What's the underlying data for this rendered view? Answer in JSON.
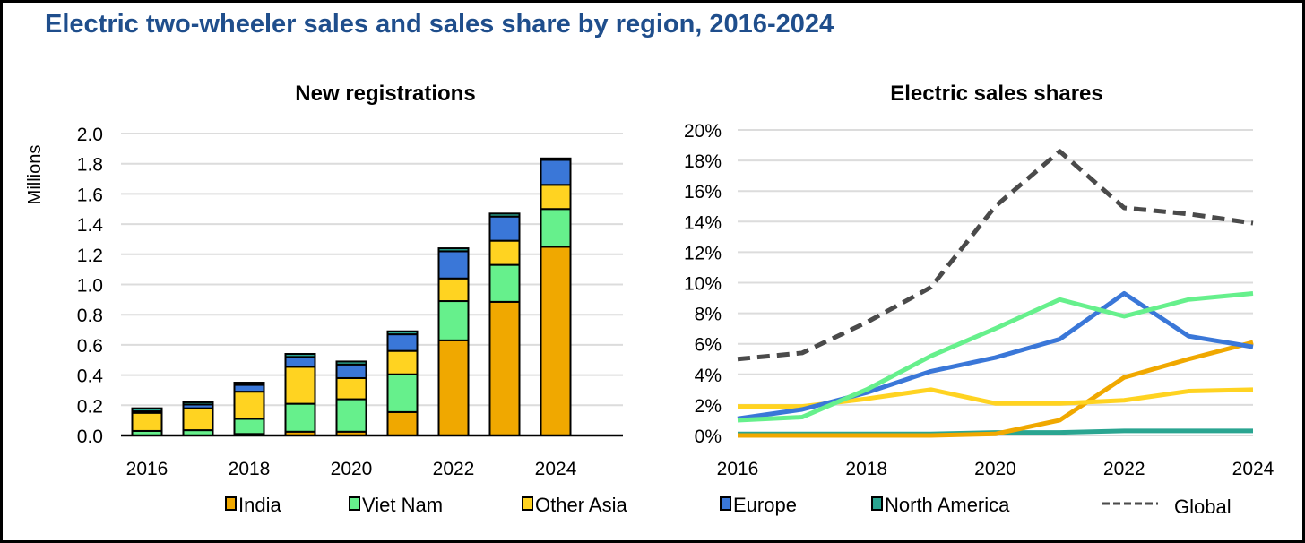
{
  "title": "Electric two-wheeler sales and sales share by region, 2016-2024",
  "legend": [
    {
      "name": "India",
      "color": "#f0a800"
    },
    {
      "name": "Viet Nam",
      "color": "#66f08c"
    },
    {
      "name": "Other Asia",
      "color": "#ffd321"
    },
    {
      "name": "Europe",
      "color": "#3a77d8"
    },
    {
      "name": "North America",
      "color": "#2aa591"
    },
    {
      "name": "Global",
      "color": "#4a4a4a",
      "style": "dashed"
    }
  ],
  "chart_data": [
    {
      "type": "bar",
      "stacked": true,
      "title": "New registrations",
      "xlabel": "",
      "ylabel": "Millions",
      "ylim": [
        0,
        2.0
      ],
      "yticks": [
        "0.0",
        "0.2",
        "0.4",
        "0.6",
        "0.8",
        "1.0",
        "1.2",
        "1.4",
        "1.6",
        "1.8",
        "2.0"
      ],
      "xtick_labels": [
        "2016",
        "2018",
        "2020",
        "2022",
        "2024"
      ],
      "categories": [
        "2016",
        "2017",
        "2018",
        "2019",
        "2020",
        "2021",
        "2022",
        "2023",
        "2024"
      ],
      "grid": true,
      "series": [
        {
          "name": "India",
          "values": [
            0.0,
            0.0,
            0.01,
            0.025,
            0.025,
            0.155,
            0.63,
            0.885,
            1.25
          ]
        },
        {
          "name": "Viet Nam",
          "values": [
            0.03,
            0.035,
            0.1,
            0.185,
            0.215,
            0.25,
            0.26,
            0.245,
            0.25
          ]
        },
        {
          "name": "Other Asia",
          "values": [
            0.12,
            0.145,
            0.18,
            0.245,
            0.14,
            0.155,
            0.15,
            0.16,
            0.16
          ]
        },
        {
          "name": "Europe",
          "values": [
            0.01,
            0.025,
            0.045,
            0.065,
            0.09,
            0.11,
            0.18,
            0.16,
            0.165
          ]
        },
        {
          "name": "North America",
          "values": [
            0.02,
            0.015,
            0.015,
            0.02,
            0.02,
            0.02,
            0.02,
            0.02,
            0.01
          ]
        }
      ]
    },
    {
      "type": "line",
      "title": "Electric sales shares",
      "xlabel": "",
      "ylabel": "",
      "ylim": [
        0,
        20
      ],
      "yticks": [
        "0%",
        "2%",
        "4%",
        "6%",
        "8%",
        "10%",
        "12%",
        "14%",
        "16%",
        "18%",
        "20%"
      ],
      "xtick_labels": [
        "2016",
        "2018",
        "2020",
        "2022",
        "2024"
      ],
      "x": [
        2016,
        2017,
        2018,
        2019,
        2020,
        2021,
        2022,
        2023,
        2024
      ],
      "grid": true,
      "series": [
        {
          "name": "Global",
          "values": [
            5.0,
            5.4,
            7.4,
            9.7,
            15.0,
            18.6,
            14.9,
            14.5,
            13.9
          ]
        },
        {
          "name": "Viet Nam",
          "values": [
            1.0,
            1.2,
            3.0,
            5.2,
            7.0,
            8.9,
            7.8,
            8.9,
            9.3
          ]
        },
        {
          "name": "Europe",
          "values": [
            1.1,
            1.7,
            2.8,
            4.2,
            5.1,
            6.3,
            9.3,
            6.5,
            5.8
          ]
        },
        {
          "name": "Other Asia",
          "values": [
            1.9,
            1.9,
            2.4,
            3.0,
            2.1,
            2.1,
            2.3,
            2.9,
            3.0
          ]
        },
        {
          "name": "India",
          "values": [
            0.0,
            0.0,
            0.0,
            0.0,
            0.1,
            1.0,
            3.8,
            5.0,
            6.1
          ]
        },
        {
          "name": "North America",
          "values": [
            0.1,
            0.1,
            0.1,
            0.1,
            0.2,
            0.2,
            0.3,
            0.3,
            0.3
          ]
        }
      ]
    }
  ]
}
